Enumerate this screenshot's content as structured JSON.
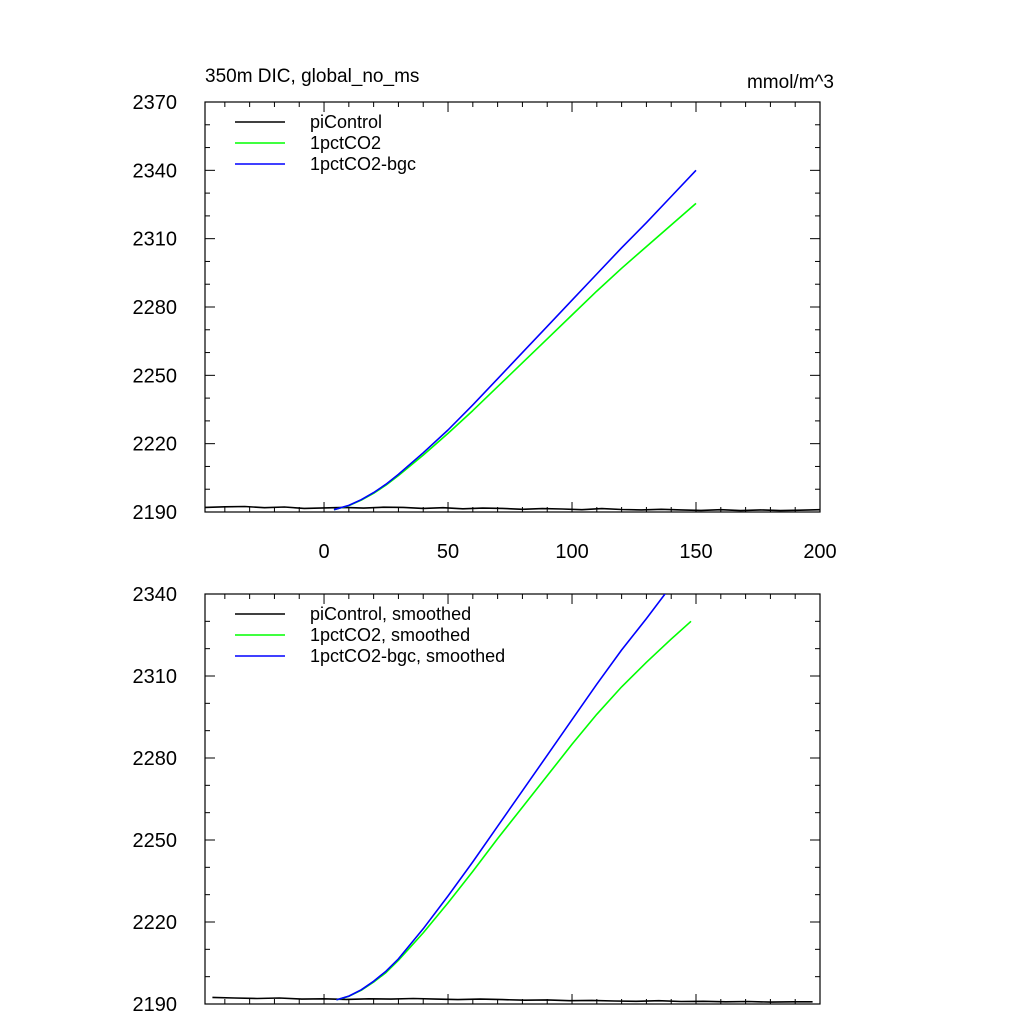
{
  "chart_data": [
    {
      "type": "line",
      "title": "350m DIC, global_no_ms",
      "units": "mmol/m^3",
      "xlim": [
        -48,
        200
      ],
      "ylim": [
        2190,
        2370
      ],
      "x_ticks": [
        0,
        50,
        100,
        150,
        200
      ],
      "y_ticks": [
        2190,
        2220,
        2250,
        2280,
        2310,
        2340,
        2370
      ],
      "x_ticks_labeled": true,
      "legend_position": "top-left",
      "series": [
        {
          "name": "piControl",
          "color": "#000000",
          "x": [
            -48,
            -40,
            -32,
            -24,
            -16,
            -8,
            0,
            8,
            16,
            24,
            32,
            40,
            48,
            56,
            64,
            72,
            80,
            88,
            96,
            104,
            112,
            120,
            128,
            136,
            144,
            152,
            160,
            168,
            176,
            184,
            192,
            200
          ],
          "y": [
            2192.0,
            2192.3,
            2192.4,
            2191.9,
            2192.2,
            2191.6,
            2191.8,
            2192.0,
            2191.7,
            2192.1,
            2192.0,
            2191.6,
            2191.9,
            2191.4,
            2191.7,
            2191.6,
            2191.2,
            2191.5,
            2191.3,
            2191.0,
            2191.5,
            2191.1,
            2190.9,
            2191.2,
            2190.9,
            2190.7,
            2191.0,
            2190.6,
            2190.9,
            2190.6,
            2190.8,
            2191.0
          ]
        },
        {
          "name": "1pctCO2",
          "color": "#00ff00",
          "x": [
            4,
            10,
            15,
            20,
            25,
            30,
            40,
            50,
            60,
            70,
            80,
            90,
            100,
            110,
            120,
            130,
            140,
            150
          ],
          "y": [
            2191.0,
            2192.8,
            2195.2,
            2198.2,
            2201.8,
            2206.0,
            2215.0,
            2224.5,
            2234.5,
            2245.0,
            2255.5,
            2266.0,
            2276.5,
            2287.0,
            2297.0,
            2306.5,
            2316.0,
            2325.5
          ]
        },
        {
          "name": "1pctCO2-bgc",
          "color": "#0000ff",
          "x": [
            4,
            10,
            15,
            20,
            25,
            30,
            40,
            50,
            60,
            70,
            80,
            90,
            100,
            110,
            120,
            130,
            140,
            150
          ],
          "y": [
            2191.0,
            2192.9,
            2195.4,
            2198.5,
            2202.2,
            2206.5,
            2216.0,
            2226.0,
            2237.0,
            2248.5,
            2260.0,
            2271.5,
            2283.0,
            2294.5,
            2306.0,
            2317.0,
            2328.5,
            2340.0
          ]
        }
      ]
    },
    {
      "type": "line",
      "title": "",
      "xlim": [
        -48,
        200
      ],
      "ylim": [
        2190,
        2340
      ],
      "x_ticks": [
        0,
        50,
        100,
        150,
        200
      ],
      "y_ticks": [
        2190,
        2220,
        2250,
        2280,
        2310,
        2340
      ],
      "x_ticks_labeled": false,
      "legend_position": "top-left",
      "series": [
        {
          "name": "piControl, smoothed",
          "color": "#000000",
          "x": [
            -45,
            -36,
            -27,
            -18,
            -9,
            0,
            9,
            18,
            27,
            36,
            45,
            54,
            63,
            72,
            81,
            90,
            99,
            108,
            117,
            126,
            135,
            144,
            153,
            162,
            171,
            180,
            189,
            197
          ],
          "y": [
            2192.4,
            2192.2,
            2192.0,
            2192.2,
            2191.8,
            2191.9,
            2191.7,
            2191.9,
            2191.8,
            2192.0,
            2191.8,
            2191.6,
            2191.8,
            2191.6,
            2191.4,
            2191.5,
            2191.2,
            2191.3,
            2191.1,
            2191.0,
            2191.2,
            2190.9,
            2191.0,
            2190.8,
            2190.9,
            2190.7,
            2190.8,
            2190.8
          ]
        },
        {
          "name": "1pctCO2, smoothed",
          "color": "#00ff00",
          "x": [
            5,
            10,
            15,
            20,
            25,
            30,
            40,
            50,
            60,
            70,
            80,
            90,
            100,
            110,
            120,
            130,
            140,
            148
          ],
          "y": [
            2191.5,
            2192.8,
            2195.0,
            2198.0,
            2201.5,
            2206.0,
            2216.0,
            2227.0,
            2238.5,
            2250.5,
            2262.0,
            2273.5,
            2285.0,
            2296.0,
            2306.0,
            2315.0,
            2323.5,
            2330.0
          ]
        },
        {
          "name": "1pctCO2-bgc, smoothed",
          "color": "#0000ff",
          "x": [
            5,
            10,
            15,
            20,
            25,
            30,
            40,
            50,
            60,
            70,
            80,
            90,
            100,
            110,
            120,
            130,
            140,
            148
          ],
          "y": [
            2191.5,
            2192.9,
            2195.2,
            2198.3,
            2202.0,
            2206.5,
            2217.5,
            2229.5,
            2242.0,
            2255.0,
            2268.0,
            2281.0,
            2294.0,
            2307.0,
            2319.5,
            2331.0,
            2343.0,
            2351.5
          ]
        }
      ]
    }
  ]
}
